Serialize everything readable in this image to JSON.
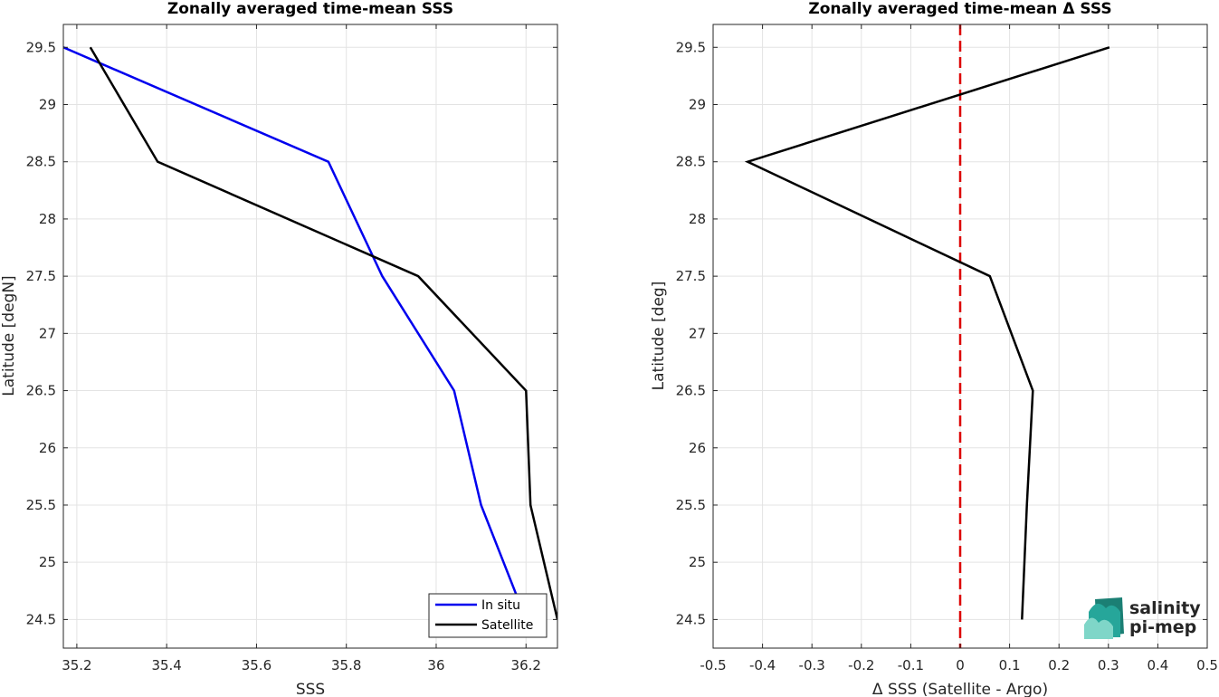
{
  "chart_data": [
    {
      "type": "line",
      "title": "Zonally averaged time-mean SSS",
      "xlabel": "SSS",
      "ylabel": "Latitude [degN]",
      "xlim": [
        35.17,
        36.27
      ],
      "ylim": [
        24.25,
        29.7
      ],
      "xticks": [
        35.2,
        35.4,
        35.6,
        35.8,
        36,
        36.2
      ],
      "xticklabels": [
        "35.2",
        "35.4",
        "35.6",
        "35.8",
        "36",
        "36.2"
      ],
      "yticks": [
        24.5,
        25,
        25.5,
        26,
        26.5,
        27,
        27.5,
        28,
        28.5,
        29,
        29.5
      ],
      "yticklabels": [
        "24.5",
        "25",
        "25.5",
        "26",
        "26.5",
        "27",
        "27.5",
        "28",
        "28.5",
        "29",
        "29.5"
      ],
      "grid": true,
      "legend_position": "bottom-right",
      "series": [
        {
          "name": "In situ",
          "color": "#0000ee",
          "x": [
            36.2,
            36.1,
            36.04,
            35.88,
            35.76,
            35.17
          ],
          "y": [
            24.5,
            25.5,
            26.5,
            27.5,
            28.5,
            29.5
          ]
        },
        {
          "name": "Satellite",
          "color": "#000000",
          "x": [
            36.27,
            36.21,
            36.2,
            35.96,
            35.38,
            35.23
          ],
          "y": [
            24.5,
            25.5,
            26.5,
            27.5,
            28.5,
            29.5
          ]
        }
      ]
    },
    {
      "type": "line",
      "title": "Zonally averaged time-mean Δ SSS",
      "xlabel": "Δ SSS (Satellite - Argo)",
      "ylabel": "Latitude [deg]",
      "xlim": [
        -0.5,
        0.5
      ],
      "ylim": [
        24.25,
        29.7
      ],
      "xticks": [
        -0.5,
        -0.4,
        -0.3,
        -0.2,
        -0.1,
        0,
        0.1,
        0.2,
        0.3,
        0.4,
        0.5
      ],
      "xticklabels": [
        "-0.5",
        "-0.4",
        "-0.3",
        "-0.2",
        "-0.1",
        "0",
        "0.1",
        "0.2",
        "0.3",
        "0.4",
        "0.5"
      ],
      "yticks": [
        24.5,
        25,
        25.5,
        26,
        26.5,
        27,
        27.5,
        28,
        28.5,
        29,
        29.5
      ],
      "yticklabels": [
        "24.5",
        "25",
        "25.5",
        "26",
        "26.5",
        "27",
        "27.5",
        "28",
        "28.5",
        "29",
        "29.5"
      ],
      "grid": true,
      "zero_line": {
        "x": 0,
        "color": "#dd0000",
        "style": "dashed"
      },
      "series": [
        {
          "color": "#000000",
          "x": [
            0.125,
            0.135,
            0.147,
            0.06,
            -0.43,
            0.302
          ],
          "y": [
            24.5,
            25.5,
            26.5,
            27.5,
            28.5,
            29.5
          ]
        }
      ]
    }
  ],
  "logo": {
    "line1": "salinity",
    "line2": "pi-mep",
    "colors": [
      "#26a69a",
      "#1b7f74",
      "#7fd6c8"
    ]
  }
}
